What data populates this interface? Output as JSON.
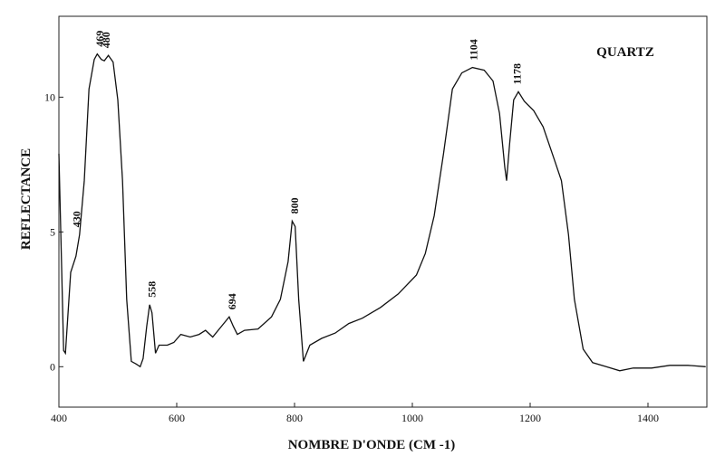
{
  "chart_data": {
    "type": "line",
    "sample_label": "QUARTZ",
    "xlabel": "NOMBRE D'ONDE (CM -1)",
    "ylabel": "REFLECTANCE",
    "color": "#111111",
    "xlim": [
      400,
      1500
    ],
    "ylim": [
      -1.5,
      13
    ],
    "xticks": [
      400,
      600,
      800,
      1000,
      1200,
      1400
    ],
    "yticks": [
      0,
      5,
      10
    ],
    "grid": false,
    "annotations": [
      "430",
      "469",
      "480",
      "558",
      "694",
      "800",
      "1104",
      "1178"
    ],
    "x": [
      400,
      408,
      411,
      420,
      429,
      435,
      443,
      451,
      460,
      465,
      472,
      477,
      484,
      492,
      500,
      508,
      515,
      523,
      531,
      538,
      543,
      549,
      554,
      558,
      564,
      570,
      584,
      595,
      607,
      623,
      638,
      649,
      661,
      676,
      689,
      696,
      703,
      715,
      738,
      761,
      776,
      789,
      796,
      801,
      807,
      815,
      826,
      846,
      869,
      892,
      915,
      946,
      976,
      1007,
      1022,
      1037,
      1053,
      1068,
      1084,
      1102,
      1122,
      1137,
      1148,
      1157,
      1160,
      1165,
      1172,
      1180,
      1190,
      1206,
      1222,
      1240,
      1253,
      1265,
      1275,
      1290,
      1306,
      1329,
      1352,
      1375,
      1406,
      1437,
      1468,
      1498
    ],
    "values": [
      7.9,
      0.6,
      0.5,
      3.5,
      4.1,
      4.9,
      6.9,
      10.3,
      11.4,
      11.6,
      11.4,
      11.35,
      11.55,
      11.3,
      9.9,
      6.9,
      2.5,
      0.2,
      0.1,
      0,
      0.3,
      1.5,
      2.3,
      2.0,
      0.5,
      0.8,
      0.8,
      0.9,
      1.2,
      1.1,
      1.2,
      1.35,
      1.1,
      1.5,
      1.85,
      1.5,
      1.2,
      1.35,
      1.4,
      1.85,
      2.5,
      3.9,
      5.4,
      5.2,
      2.5,
      0.2,
      0.8,
      1.05,
      1.25,
      1.6,
      1.8,
      2.2,
      2.7,
      3.4,
      4.2,
      5.6,
      7.9,
      10.3,
      10.9,
      11.1,
      11.0,
      10.6,
      9.4,
      7.4,
      6.9,
      8.25,
      9.9,
      10.2,
      9.85,
      9.5,
      8.9,
      7.75,
      6.9,
      4.9,
      2.5,
      0.65,
      0.15,
      0,
      -0.15,
      -0.05,
      -0.05,
      0.05,
      0.05,
      0
    ]
  }
}
